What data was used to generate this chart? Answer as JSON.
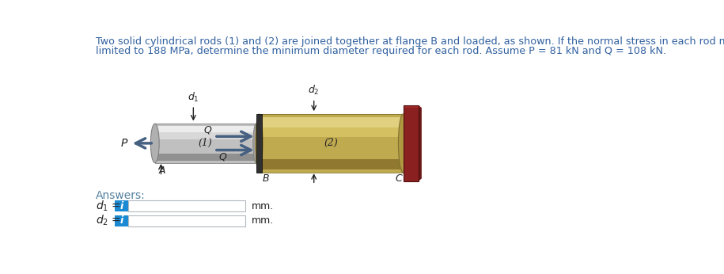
{
  "title_line1": "Two solid cylindrical rods (1) and (2) are joined together at flange B and loaded, as shown. If the normal stress in each rod must be",
  "title_line2": "limited to 188 MPa, determine the minimum diameter required for each rod. Assume P = 81 kN and Q = 108 kN.",
  "title_color": "#3060a0",
  "title_fontsize": 9.2,
  "answers_label": "Answers:",
  "answers_color": "#5580a0",
  "info_blue": "#1a8ad4",
  "box_border": "#b0b8c0",
  "background": "#ffffff",
  "arrow_color": "#456080",
  "rod1_body": "#c0c0c0",
  "rod1_mid": "#d8d8d8",
  "rod1_highlight": "#ececec",
  "rod1_dark": "#909090",
  "rod1_edge": "#808080",
  "rod1_end": "#b0b0b0",
  "rod2_body": "#c0aa50",
  "rod2_mid": "#d4c060",
  "rod2_highlight": "#e0d080",
  "rod2_dark": "#907830",
  "rod2_edge": "#807030",
  "rod2_end": "#b09840",
  "flange_color": "#303030",
  "wall_dark": "#6a1818",
  "wall_mid": "#8a2020",
  "wall_light": "#7a1818",
  "label_color": "#222222"
}
